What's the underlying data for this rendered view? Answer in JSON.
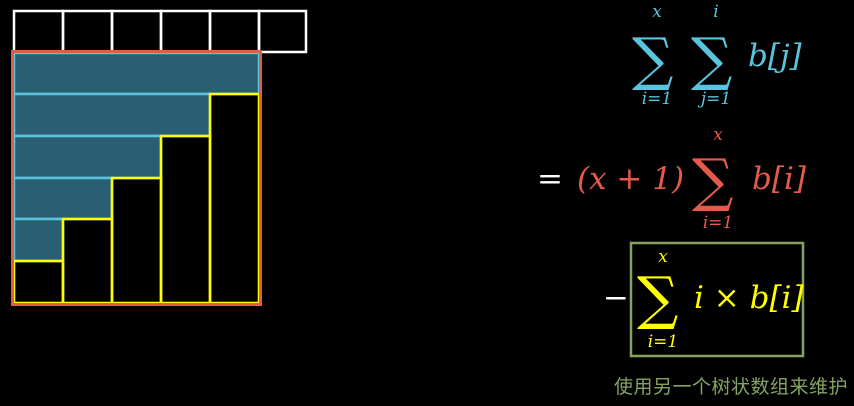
{
  "colors": {
    "background": "#000000",
    "white": "#ffffff",
    "blue": "#58c4dd",
    "teal_fill": "#2a5e73",
    "red": "#e65a4c",
    "yellow": "#ffff00",
    "green_box": "#85a35e",
    "caption": "#85a35e"
  },
  "diagram": {
    "top_row_cells": 6,
    "bar_heights": [
      1,
      2,
      3,
      4,
      5
    ],
    "blue_rows": [
      4,
      3,
      2,
      1,
      0
    ]
  },
  "formula1": {
    "sum1_upper": "x",
    "sum1_lower": "i=1",
    "sum2_upper": "i",
    "sum2_lower": "j=1",
    "term": "b[j]"
  },
  "formula2": {
    "equals": "=",
    "factor": "(x + 1)",
    "sum_upper": "x",
    "sum_lower": "i=1",
    "term": "b[i]"
  },
  "formula3": {
    "minus": "−",
    "sum_upper": "x",
    "sum_lower": "i=1",
    "term": "i × b[i]"
  },
  "caption": "使用另一个树状数组来维护"
}
